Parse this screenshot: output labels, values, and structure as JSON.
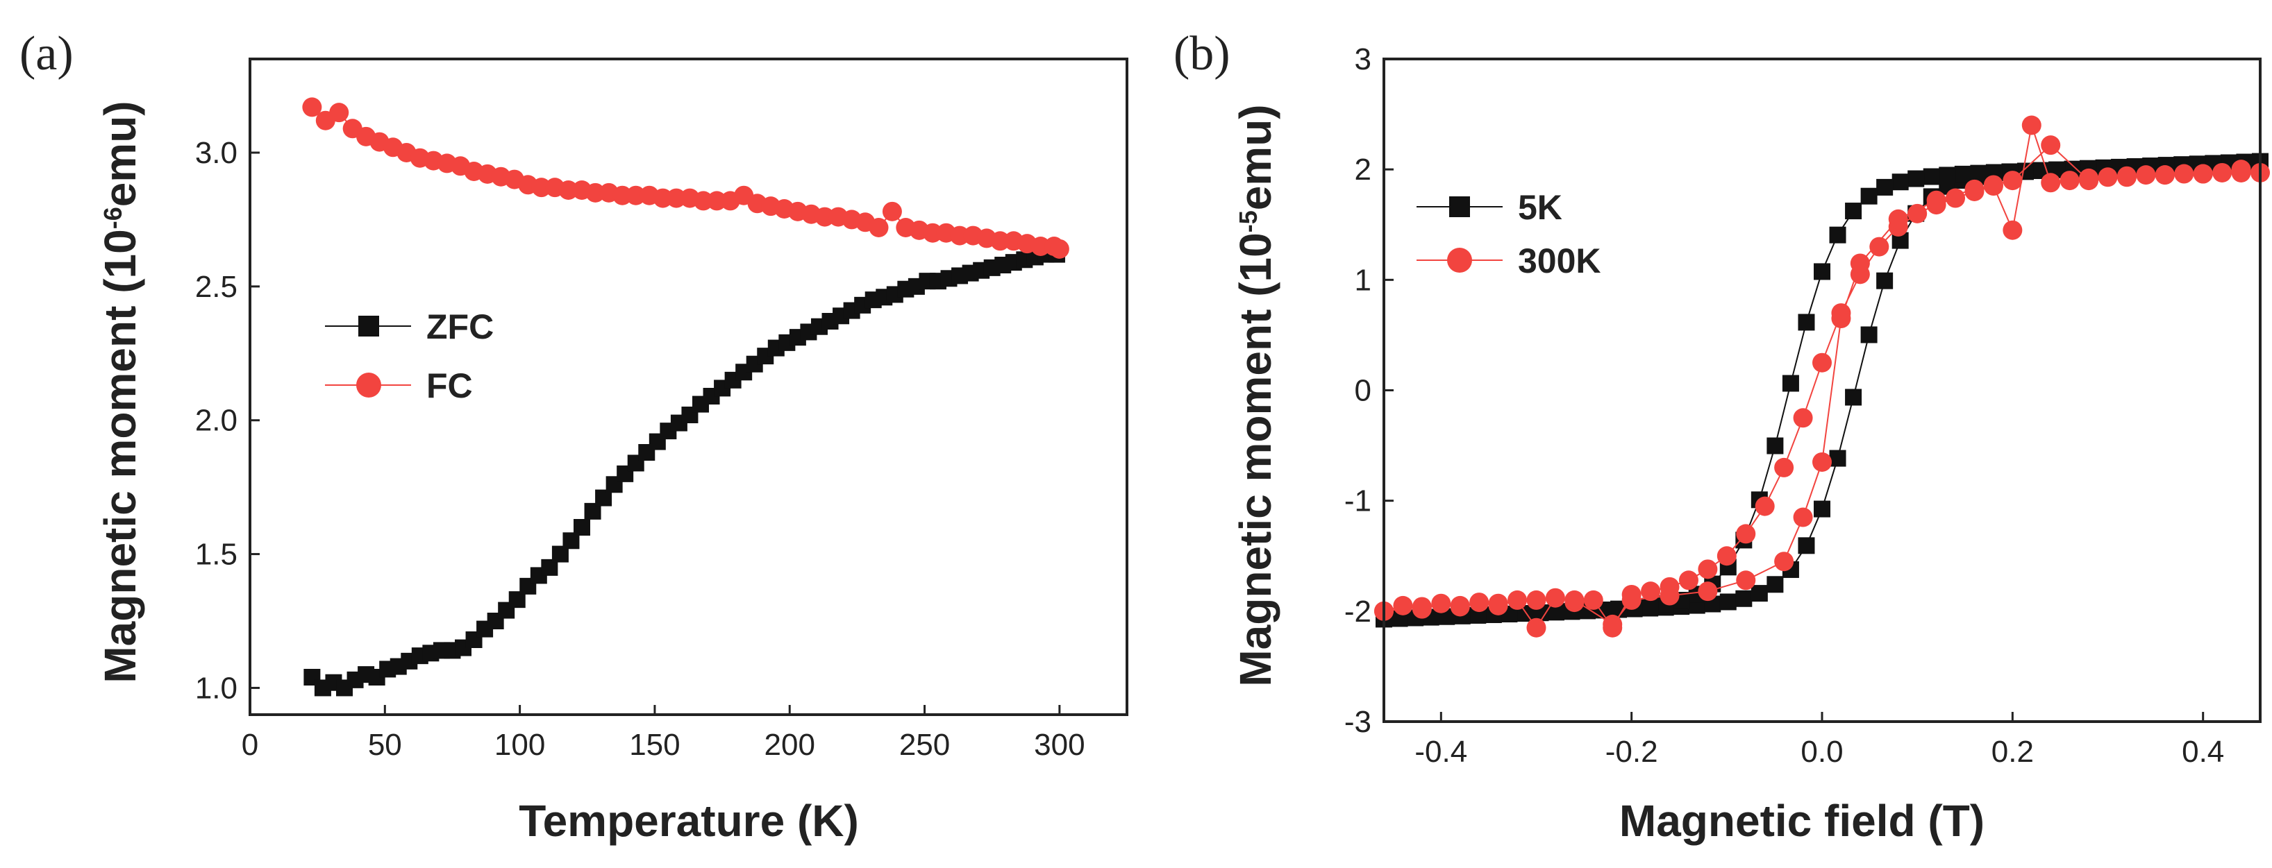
{
  "colors": {
    "zfc": "#111111",
    "fc": "#f2443f",
    "axis": "#222222"
  },
  "chart_data": [
    {
      "panel_label": "(a)",
      "type": "scatter",
      "xlabel": "Temperature (K)",
      "ylabel_main": "Magnetic moment (10",
      "ylabel_exp": "-6",
      "ylabel_unit": "emu)",
      "xlim": [
        0,
        325
      ],
      "ylim": [
        0.9,
        3.35
      ],
      "xticks": [
        0,
        50,
        100,
        150,
        200,
        250,
        300
      ],
      "yticks": [
        1.0,
        1.5,
        2.0,
        2.5,
        3.0
      ],
      "ytick_labels": [
        "1.0",
        "1.5",
        "2.0",
        "2.5",
        "3.0"
      ],
      "legend_position": "center-left",
      "series": [
        {
          "name": "ZFC",
          "marker": "square",
          "color_key": "zfc",
          "x": [
            23,
            27,
            31,
            35,
            39,
            43,
            47,
            51,
            55,
            59,
            63,
            67,
            71,
            75,
            79,
            83,
            87,
            91,
            95,
            99,
            103,
            107,
            111,
            115,
            119,
            123,
            127,
            131,
            135,
            139,
            143,
            147,
            151,
            155,
            159,
            163,
            167,
            171,
            175,
            179,
            183,
            187,
            191,
            195,
            199,
            203,
            207,
            211,
            215,
            219,
            223,
            227,
            231,
            235,
            239,
            243,
            247,
            251,
            255,
            259,
            263,
            267,
            271,
            275,
            279,
            283,
            287,
            291,
            295,
            299
          ],
          "y": [
            1.04,
            1.0,
            1.02,
            1.0,
            1.03,
            1.05,
            1.04,
            1.07,
            1.08,
            1.1,
            1.12,
            1.13,
            1.14,
            1.14,
            1.15,
            1.18,
            1.22,
            1.25,
            1.29,
            1.33,
            1.38,
            1.42,
            1.45,
            1.5,
            1.55,
            1.6,
            1.66,
            1.71,
            1.76,
            1.8,
            1.84,
            1.88,
            1.92,
            1.96,
            1.99,
            2.02,
            2.06,
            2.09,
            2.12,
            2.15,
            2.18,
            2.21,
            2.24,
            2.27,
            2.29,
            2.31,
            2.33,
            2.35,
            2.37,
            2.39,
            2.41,
            2.43,
            2.45,
            2.46,
            2.47,
            2.49,
            2.5,
            2.52,
            2.52,
            2.53,
            2.54,
            2.55,
            2.56,
            2.57,
            2.58,
            2.59,
            2.6,
            2.61,
            2.62,
            2.62
          ]
        },
        {
          "name": "FC",
          "marker": "circle",
          "color_key": "fc",
          "x": [
            23,
            28,
            33,
            38,
            43,
            48,
            53,
            58,
            63,
            68,
            73,
            78,
            83,
            88,
            93,
            98,
            103,
            108,
            113,
            118,
            123,
            128,
            133,
            138,
            143,
            148,
            153,
            158,
            163,
            168,
            173,
            178,
            183,
            188,
            193,
            198,
            203,
            208,
            213,
            218,
            223,
            228,
            233,
            238,
            243,
            248,
            253,
            258,
            263,
            268,
            273,
            278,
            283,
            288,
            293,
            298,
            300
          ],
          "y": [
            3.17,
            3.12,
            3.15,
            3.09,
            3.06,
            3.04,
            3.02,
            3.0,
            2.98,
            2.97,
            2.96,
            2.95,
            2.93,
            2.92,
            2.91,
            2.9,
            2.88,
            2.87,
            2.87,
            2.86,
            2.86,
            2.85,
            2.85,
            2.84,
            2.84,
            2.84,
            2.83,
            2.83,
            2.83,
            2.82,
            2.82,
            2.82,
            2.84,
            2.81,
            2.8,
            2.79,
            2.78,
            2.77,
            2.76,
            2.76,
            2.75,
            2.74,
            2.72,
            2.78,
            2.72,
            2.71,
            2.7,
            2.7,
            2.69,
            2.69,
            2.68,
            2.67,
            2.67,
            2.66,
            2.65,
            2.65,
            2.64
          ]
        }
      ]
    },
    {
      "panel_label": "(b)",
      "type": "scatter",
      "xlabel": "Magnetic field (T)",
      "ylabel_main": "Magnetic moment (10",
      "ylabel_exp": "-5",
      "ylabel_unit": "emu)",
      "xlim": [
        -0.46,
        0.46
      ],
      "ylim": [
        -3,
        3
      ],
      "xticks": [
        -0.4,
        -0.2,
        0.0,
        0.2,
        0.4
      ],
      "xtick_labels": [
        "-0.4",
        "-0.2",
        "0.0",
        "0.2",
        "0.4"
      ],
      "yticks": [
        -3,
        -2,
        -1,
        0,
        1,
        2,
        3
      ],
      "ytick_labels": [
        "-3",
        "-2",
        "-1",
        "0",
        "1",
        "2",
        "3"
      ],
      "legend_position": "upper-left",
      "series": [
        {
          "name": "5K",
          "marker": "square",
          "color_key": "zfc",
          "model": "hysteresis",
          "ms": 2.45,
          "hc": 0.035,
          "width": 0.055,
          "slope": 0.35,
          "points_per_branch": 56
        },
        {
          "name": "300K",
          "marker": "circle",
          "color_key": "fc",
          "x": [
            -0.46,
            -0.44,
            -0.42,
            -0.4,
            -0.38,
            -0.36,
            -0.34,
            -0.32,
            -0.3,
            -0.28,
            -0.26,
            -0.24,
            -0.22,
            -0.2,
            -0.18,
            -0.16,
            -0.14,
            -0.12,
            -0.1,
            -0.08,
            -0.06,
            -0.04,
            -0.02,
            0.0,
            0.02,
            0.04,
            0.06,
            0.08,
            0.1,
            0.12,
            0.14,
            0.16,
            0.18,
            0.2,
            0.22,
            0.24,
            0.26,
            0.28,
            0.3,
            0.32,
            0.34,
            0.36,
            0.38,
            0.4,
            0.42,
            0.44,
            0.46,
            0.44,
            0.4,
            0.36,
            0.32,
            0.28,
            0.24,
            0.2,
            0.18,
            0.16,
            0.12,
            0.08,
            0.04,
            0.02,
            0.0,
            -0.02,
            -0.04,
            -0.08,
            -0.12,
            -0.16,
            -0.2,
            -0.22,
            -0.26,
            -0.3,
            -0.34,
            -0.38,
            -0.42,
            -0.46
          ],
          "y": [
            -2.0,
            -1.95,
            -1.98,
            -1.93,
            -1.96,
            -1.92,
            -1.95,
            -1.9,
            -2.15,
            -1.88,
            -1.92,
            -1.9,
            -2.15,
            -1.85,
            -1.82,
            -1.78,
            -1.72,
            -1.62,
            -1.5,
            -1.3,
            -1.05,
            -0.7,
            -0.25,
            0.25,
            0.7,
            1.05,
            1.3,
            1.48,
            1.6,
            1.68,
            1.74,
            1.8,
            1.85,
            1.45,
            2.4,
            1.88,
            1.9,
            1.92,
            1.93,
            1.94,
            1.95,
            1.95,
            1.96,
            1.96,
            1.97,
            1.97,
            1.97,
            2.0,
            1.96,
            1.95,
            1.93,
            1.9,
            2.22,
            1.9,
            1.86,
            1.82,
            1.72,
            1.55,
            1.15,
            0.65,
            -0.65,
            -1.15,
            -1.55,
            -1.72,
            -1.82,
            -1.86,
            -1.9,
            -2.12,
            -1.9,
            -1.9,
            -1.93,
            -1.95,
            -1.96,
            -2.0
          ]
        }
      ]
    }
  ]
}
